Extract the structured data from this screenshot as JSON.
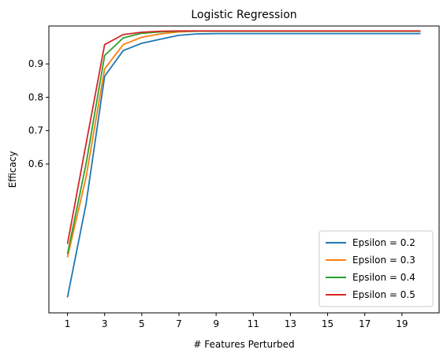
{
  "chart_data": {
    "type": "line",
    "title": "Logistic Regression",
    "xlabel": "# Features Perturbed",
    "ylabel": "Efficacy",
    "xlim": [
      0,
      21
    ],
    "ylim": [
      0.1534,
      1.0137
    ],
    "xticks": [
      1,
      3,
      5,
      7,
      9,
      11,
      13,
      15,
      17,
      19
    ],
    "yticks": [
      0.6,
      0.7,
      0.8,
      0.9
    ],
    "ytick_labels": [
      "0.6",
      "0.7",
      "0.8",
      "0.9"
    ],
    "legend_location": "lower right",
    "grid": false,
    "x": [
      1,
      2,
      3,
      4,
      5,
      6,
      7,
      8,
      9,
      10,
      11,
      12,
      13,
      14,
      15,
      16,
      17,
      18,
      19,
      20
    ],
    "series": [
      {
        "name": "Epsilon = 0.2",
        "color": "#1f77b4",
        "values": [
          0.2,
          0.48,
          0.863,
          0.94,
          0.962,
          0.974,
          0.986,
          0.99,
          0.991,
          0.991,
          0.991,
          0.991,
          0.991,
          0.991,
          0.991,
          0.991,
          0.991,
          0.991,
          0.991,
          0.991
        ]
      },
      {
        "name": "Epsilon = 0.3",
        "color": "#ff7f0e",
        "values": [
          0.32,
          0.56,
          0.885,
          0.958,
          0.98,
          0.99,
          0.996,
          0.998,
          0.998,
          0.998,
          0.998,
          0.998,
          0.998,
          0.998,
          0.998,
          0.998,
          0.998,
          0.998,
          0.998,
          0.998
        ]
      },
      {
        "name": "Epsilon = 0.4",
        "color": "#2ca02c",
        "values": [
          0.33,
          0.6,
          0.925,
          0.978,
          0.992,
          0.996,
          0.998,
          0.998,
          0.998,
          0.998,
          0.998,
          0.998,
          0.998,
          0.998,
          0.998,
          0.998,
          0.998,
          0.998,
          0.998,
          0.998
        ]
      },
      {
        "name": "Epsilon = 0.5",
        "color": "#d62728",
        "values": [
          0.36,
          0.66,
          0.958,
          0.988,
          0.995,
          0.998,
          0.999,
          0.999,
          0.999,
          0.999,
          0.999,
          0.999,
          0.999,
          0.999,
          0.999,
          0.999,
          0.999,
          0.999,
          0.999,
          0.999
        ]
      }
    ]
  }
}
